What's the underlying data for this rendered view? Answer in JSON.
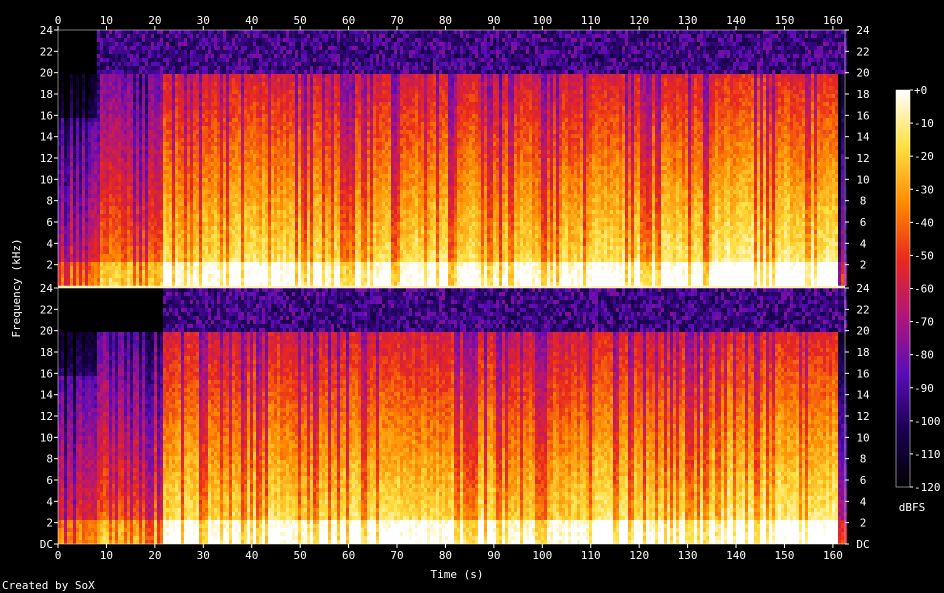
{
  "chart_data": {
    "type": "heatmap",
    "subtype": "spectrogram",
    "channels": 2,
    "xlabel": "Time (s)",
    "ylabel": "Frequency (kHz)",
    "xlim": [
      0,
      162.5
    ],
    "ylim": [
      0,
      24
    ],
    "x_ticks": [
      0,
      10,
      20,
      30,
      40,
      50,
      60,
      70,
      80,
      90,
      100,
      110,
      120,
      130,
      140,
      150,
      160
    ],
    "y_ticks": [
      "DC",
      "2",
      "4",
      "6",
      "8",
      "10",
      "12",
      "14",
      "16",
      "18",
      "20",
      "22",
      "24"
    ],
    "colorbar": {
      "label": "dBFS",
      "range": [
        -120,
        0
      ],
      "ticks": [
        "+0",
        "-10",
        "-20",
        "-30",
        "-40",
        "-50",
        "-60",
        "-70",
        "-80",
        "-90",
        "-100",
        "-110",
        "-120"
      ]
    },
    "colormap": [
      "#000000",
      "#1a0050",
      "#5a0cb8",
      "#b0157a",
      "#e8281e",
      "#ff8a00",
      "#ffe040",
      "#ffffff"
    ],
    "sections": [
      {
        "start": 0,
        "end": 8,
        "cutoff_khz": 20,
        "level": 0.3,
        "note": "low energy, 16/20 kHz bands"
      },
      {
        "start": 8,
        "end": 21.5,
        "cutoff_khz": 20,
        "level": 0.42
      },
      {
        "start": 21.5,
        "end": 90,
        "cutoff_khz": 20,
        "level": 0.62
      },
      {
        "start": 90,
        "end": 110,
        "cutoff_khz": 20,
        "level": 0.6
      },
      {
        "start": 110,
        "end": 135,
        "cutoff_khz": 20,
        "level": 0.63
      },
      {
        "start": 135,
        "end": 161,
        "cutoff_khz": 20,
        "level": 0.66
      },
      {
        "start": 161,
        "end": 162.5,
        "cutoff_khz": 20,
        "level": 0.15
      }
    ]
  },
  "footer": {
    "credit": "Created by SoX"
  }
}
